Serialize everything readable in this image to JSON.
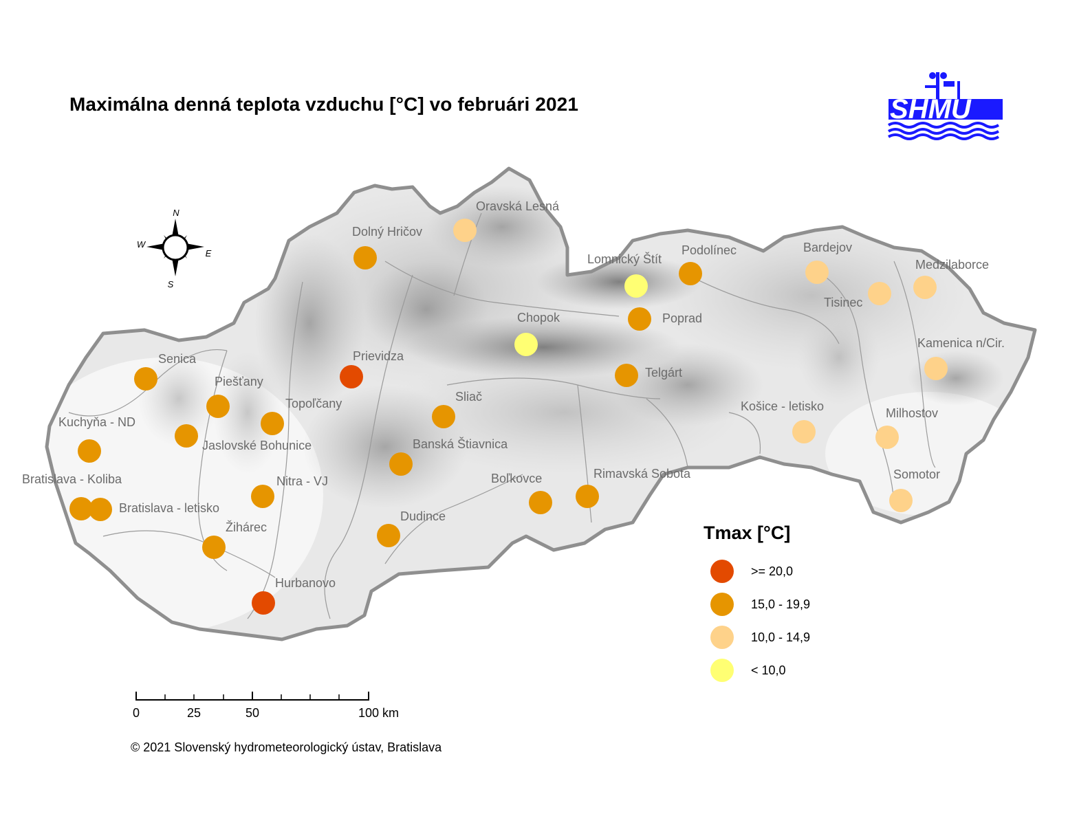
{
  "title": "Maximálna denná teplota vzduchu [°C] vo februári 2021",
  "copyright": "© 2021 Slovenský hydrometeorologický ústav, Bratislava",
  "logo": {
    "text": "SHMÚ",
    "color": "#1a1aff"
  },
  "compass": {
    "n": "N",
    "s": "S",
    "e": "E",
    "w": "W"
  },
  "scale_bar": {
    "labels": [
      "0",
      "25",
      "50",
      "100 km"
    ]
  },
  "legend": {
    "title": "Tmax [°C]",
    "classes": [
      {
        "label": ">= 20,0",
        "color": "#e34a00"
      },
      {
        "label": "15,0 - 19,9",
        "color": "#e69500"
      },
      {
        "label": "10,0 - 14,9",
        "color": "#fed28a"
      },
      {
        "label": "< 10,0",
        "color": "#ffff73"
      }
    ]
  },
  "stations": [
    {
      "name": "Oravská Lesná",
      "class": 2
    },
    {
      "name": "Dolný Hričov",
      "class": 1
    },
    {
      "name": "Lomnický Štít",
      "class": 3
    },
    {
      "name": "Podolínec",
      "class": 1
    },
    {
      "name": "Bardejov",
      "class": 2
    },
    {
      "name": "Medzilaborce",
      "class": 2
    },
    {
      "name": "Tisinec",
      "class": 2
    },
    {
      "name": "Poprad",
      "class": 1
    },
    {
      "name": "Chopok",
      "class": 3
    },
    {
      "name": "Kamenica n/Cir.",
      "class": 2
    },
    {
      "name": "Senica",
      "class": 1
    },
    {
      "name": "Prievidza",
      "class": 0
    },
    {
      "name": "Telgárt",
      "class": 1
    },
    {
      "name": "Piešťany",
      "class": 1
    },
    {
      "name": "Topoľčany",
      "class": 1
    },
    {
      "name": "Sliač",
      "class": 1
    },
    {
      "name": "Kuchyňa - ND",
      "class": 1
    },
    {
      "name": "Jaslovské Bohunice",
      "class": 1
    },
    {
      "name": "Košice - letisko",
      "class": 2
    },
    {
      "name": "Milhostov",
      "class": 2
    },
    {
      "name": "Banská Štiavnica",
      "class": 1
    },
    {
      "name": "Bratislava - Koliba",
      "class": 1
    },
    {
      "name": "Nitra - VJ",
      "class": 1
    },
    {
      "name": "Boľkovce",
      "class": 1
    },
    {
      "name": "Rimavská Sobota",
      "class": 1
    },
    {
      "name": "Somotor",
      "class": 2
    },
    {
      "name": "Bratislava - letisko",
      "class": 1
    },
    {
      "name": "Žihárec",
      "class": 1
    },
    {
      "name": "Dudince",
      "class": 1
    },
    {
      "name": "Hurbanovo",
      "class": 0
    }
  ]
}
